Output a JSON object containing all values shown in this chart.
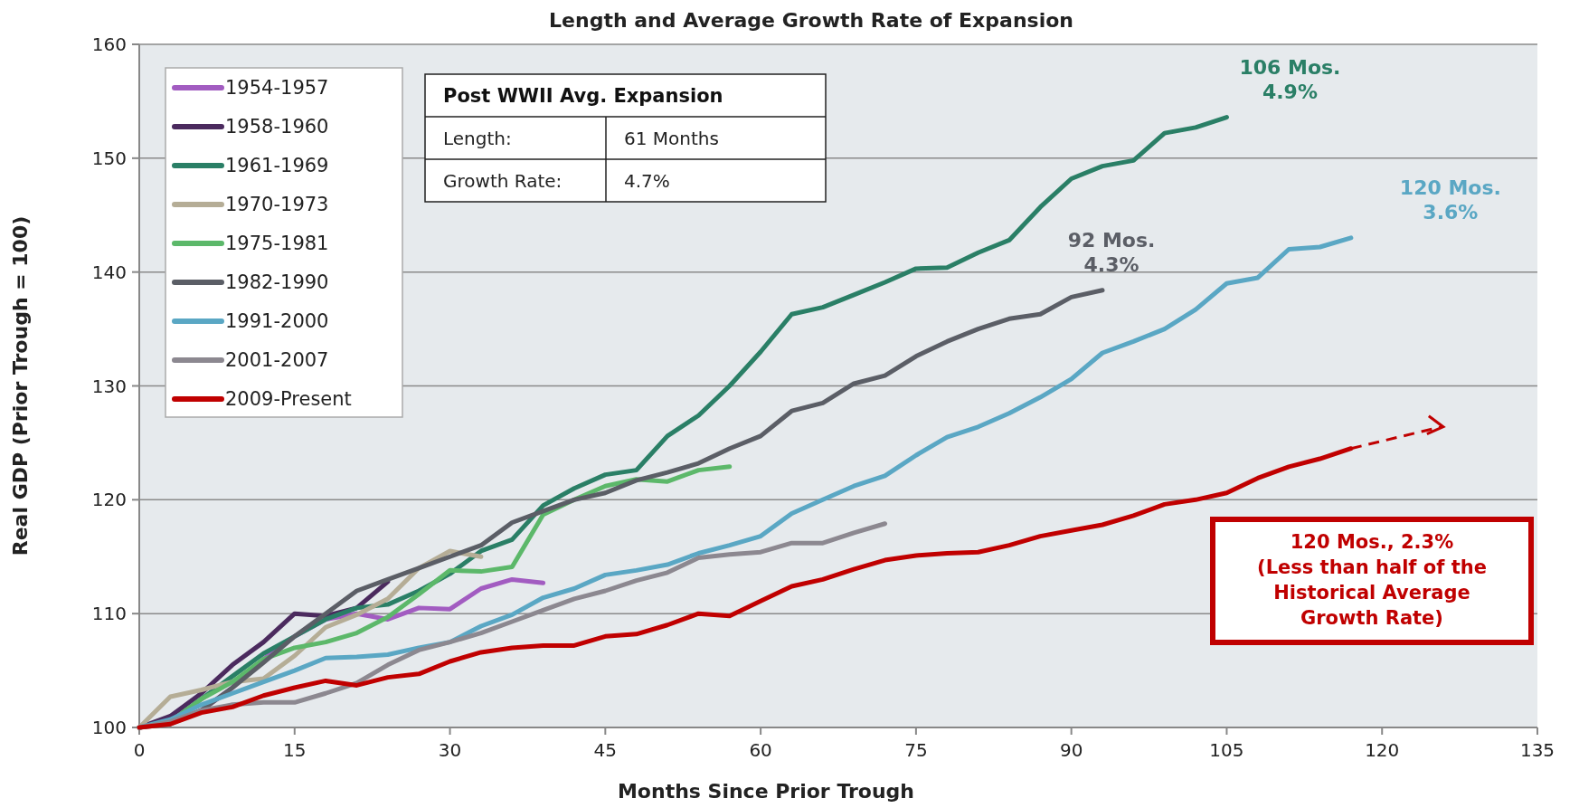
{
  "chart_data": {
    "type": "line",
    "title": "Length and Average Growth Rate of Expansion",
    "xlabel": "Months Since Prior Trough",
    "ylabel": "Real GDP (Prior Trough = 100)",
    "xlim": [
      0,
      135
    ],
    "xticks": [
      0,
      15,
      30,
      45,
      60,
      75,
      90,
      105,
      120,
      135
    ],
    "ylim": [
      100,
      160
    ],
    "yticks": [
      100,
      110,
      120,
      130,
      140,
      150,
      160
    ],
    "grid": "y",
    "legend": "top left",
    "annotations": [
      "Post WWII Avg. Expansion",
      "Length:",
      "61 Months",
      "Growth Rate:",
      "4.7%",
      "120 Mos., 2.3%\n(Less than half of the\nHistorical Average\nGrowth Rate)",
      {
        "text": "106 Mos.\n4.9%",
        "x": 105,
        "y": 153.6
      },
      {
        "text": "92 Mos.\n4.3%",
        "x": 93,
        "y": 138.4
      },
      {
        "text": "120 Mos.\n3.6%",
        "x": 117,
        "y": 143
      }
    ],
    "series": [
      {
        "name": "1954-1957",
        "color": "#a25cc1",
        "x": [
          0,
          3,
          6,
          9,
          12,
          15,
          18,
          21,
          24,
          27,
          30,
          33,
          36,
          39
        ],
        "values": [
          100,
          100.5,
          101.5,
          103.5,
          106,
          108,
          109.5,
          110,
          109.5,
          110.5,
          110.4,
          112.2,
          113,
          112.7
        ]
      },
      {
        "name": "1958-1960",
        "color": "#4b2a5e",
        "x": [
          0,
          3,
          6,
          9,
          12,
          15,
          18,
          21,
          24
        ],
        "values": [
          100,
          101,
          103,
          105.5,
          107.5,
          110,
          109.8,
          110.5,
          112.8
        ]
      },
      {
        "name": "1961-1969",
        "color": "#2a7f66",
        "x": [
          0,
          3,
          6,
          9,
          12,
          15,
          18,
          21,
          24,
          27,
          30,
          33,
          36,
          39,
          42,
          45,
          48,
          51,
          54,
          57,
          60,
          63,
          66,
          69,
          72,
          75,
          78,
          81,
          84,
          87,
          90,
          93,
          96,
          99,
          102,
          105
        ],
        "values": [
          100,
          100.5,
          102.5,
          104.5,
          106.5,
          108,
          109.5,
          110.5,
          110.8,
          112,
          113.5,
          115.5,
          116.5,
          119.5,
          121,
          122.2,
          122.6,
          125.6,
          127.4,
          130,
          133,
          136.3,
          136.9,
          138,
          139.1,
          140.3,
          140.4,
          141.7,
          142.8,
          145.7,
          148.2,
          149.3,
          149.8,
          152.2,
          152.7,
          153.6
        ]
      },
      {
        "name": "1970-1973",
        "color": "#b5ad96",
        "x": [
          0,
          3,
          6,
          9,
          12,
          15,
          18,
          21,
          24,
          27,
          30,
          33
        ],
        "values": [
          100,
          102.7,
          103.3,
          104,
          104.3,
          106.3,
          108.8,
          109.9,
          111.3,
          114,
          115.5,
          115
        ]
      },
      {
        "name": "1975-1981",
        "color": "#5cb86a",
        "x": [
          0,
          3,
          6,
          9,
          12,
          15,
          18,
          21,
          24,
          27,
          30,
          33,
          36,
          39,
          42,
          45,
          48,
          51,
          54,
          57
        ],
        "values": [
          100,
          100.5,
          102.5,
          104,
          106,
          107,
          107.5,
          108.3,
          109.7,
          111.7,
          113.8,
          113.7,
          114.1,
          118.7,
          120,
          121.2,
          121.8,
          121.6,
          122.6,
          122.9
        ]
      },
      {
        "name": "1982-1990",
        "color": "#5b5e66",
        "x": [
          0,
          3,
          6,
          9,
          12,
          15,
          18,
          21,
          24,
          27,
          30,
          33,
          36,
          39,
          42,
          45,
          48,
          51,
          54,
          57,
          60,
          63,
          66,
          69,
          72,
          75,
          78,
          81,
          84,
          87,
          90,
          93
        ],
        "values": [
          100,
          100.3,
          101.5,
          103.5,
          105.7,
          108,
          110,
          112,
          113,
          114,
          115,
          116,
          118,
          119,
          120,
          120.6,
          121.7,
          122.4,
          123.2,
          124.5,
          125.6,
          127.8,
          128.5,
          130.2,
          130.9,
          132.6,
          133.9,
          135,
          135.9,
          136.3,
          137.8,
          138.4
        ]
      },
      {
        "name": "1991-2000",
        "color": "#5aa7c4",
        "x": [
          0,
          3,
          6,
          9,
          12,
          15,
          18,
          21,
          24,
          27,
          30,
          33,
          36,
          39,
          42,
          45,
          48,
          51,
          54,
          57,
          60,
          63,
          66,
          69,
          72,
          75,
          78,
          81,
          84,
          87,
          90,
          93,
          96,
          99,
          102,
          105,
          108,
          111,
          114,
          117
        ],
        "values": [
          100,
          100.7,
          102,
          103,
          104,
          105,
          106.1,
          106.2,
          106.4,
          107,
          107.5,
          108.9,
          109.9,
          111.4,
          112.2,
          113.4,
          113.8,
          114.3,
          115.3,
          116,
          116.8,
          118.8,
          120,
          121.2,
          122.1,
          123.9,
          125.5,
          126.4,
          127.6,
          129,
          130.6,
          132.9,
          133.9,
          135,
          136.7,
          139,
          139.5,
          142,
          142.2,
          143
        ]
      },
      {
        "name": "2001-2007",
        "color": "#8c8890",
        "x": [
          0,
          3,
          6,
          9,
          12,
          15,
          18,
          21,
          24,
          27,
          30,
          33,
          36,
          39,
          42,
          45,
          48,
          51,
          54,
          57,
          60,
          63,
          66,
          69,
          72
        ],
        "values": [
          100,
          100.5,
          101.5,
          102,
          102.2,
          102.2,
          103,
          103.9,
          105.5,
          106.8,
          107.5,
          108.3,
          109.3,
          110.3,
          111.3,
          112,
          112.9,
          113.6,
          114.9,
          115.2,
          115.4,
          116.2,
          116.2,
          117.1,
          117.9
        ]
      },
      {
        "name": "2009-Present",
        "color": "#c00000",
        "x": [
          0,
          3,
          6,
          9,
          12,
          15,
          18,
          21,
          24,
          27,
          30,
          33,
          36,
          39,
          42,
          45,
          48,
          51,
          54,
          57,
          60,
          63,
          66,
          69,
          72,
          75,
          78,
          81,
          84,
          87,
          90,
          93,
          96,
          99,
          102,
          105,
          108,
          111,
          114,
          117
        ],
        "values": [
          100,
          100.3,
          101.3,
          101.8,
          102.8,
          103.5,
          104.1,
          103.7,
          104.4,
          104.7,
          105.8,
          106.6,
          107,
          107.2,
          107.2,
          108,
          108.2,
          109,
          110,
          109.8,
          111.1,
          112.4,
          113,
          113.9,
          114.7,
          115.1,
          115.3,
          115.4,
          116,
          116.8,
          117.3,
          117.8,
          118.6,
          119.6,
          120,
          120.6,
          121.9,
          122.9,
          123.6,
          124.5
        ]
      }
    ]
  }
}
